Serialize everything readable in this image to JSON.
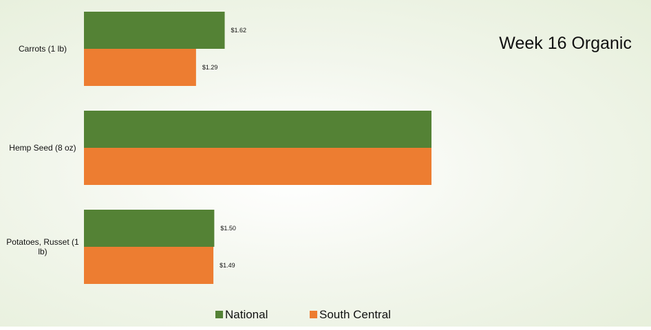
{
  "chart_data": {
    "type": "bar",
    "orientation": "horizontal",
    "title": "Week 16 Organic",
    "categories": [
      "Carrots (1 lb)",
      "Hemp Seed (8 oz)",
      "Potatoes, Russet (1 lb)"
    ],
    "series": [
      {
        "name": "National",
        "color": "#548235",
        "values": [
          1.62,
          4.0,
          1.5
        ],
        "labels": [
          "$1.62",
          "",
          "$1.50"
        ]
      },
      {
        "name": "South Central",
        "color": "#ED7D31",
        "values": [
          1.29,
          4.0,
          1.49
        ],
        "labels": [
          "$1.29",
          "",
          "$1.49"
        ]
      }
    ],
    "xlabel": "",
    "ylabel": "",
    "xlim": [
      0,
      4.0
    ],
    "grid": false,
    "legend_position": "bottom"
  }
}
